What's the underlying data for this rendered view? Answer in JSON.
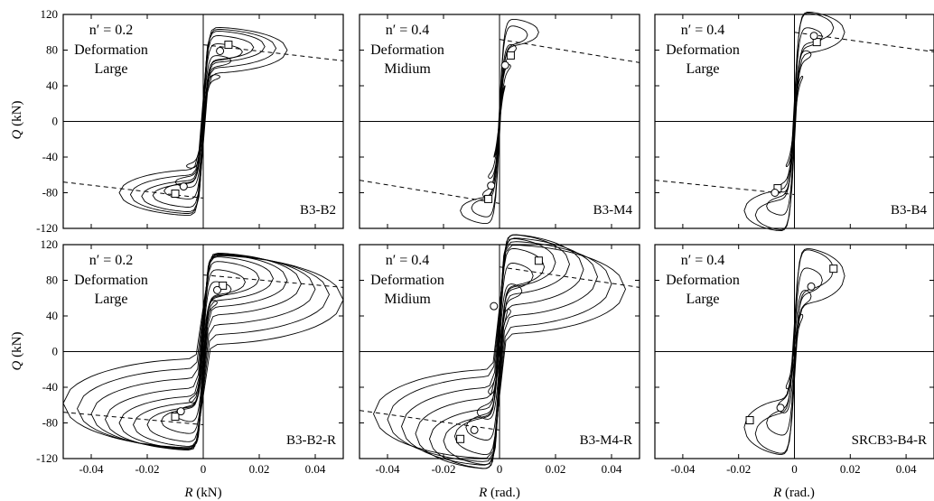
{
  "figure": {
    "y_axis_title": {
      "var": "Q",
      "unit": " (kN)"
    },
    "x_axis_titles": [
      {
        "var": "R",
        "unit": " (kN)"
      },
      {
        "var": "R",
        "unit": " (rad.)"
      },
      {
        "var": "R",
        "unit": " (rad.)"
      }
    ]
  },
  "chart_data": [
    {
      "type": "line",
      "id": "B3-B2",
      "specimen": "B3-B2",
      "annotation": {
        "n": "n′ = 0.2",
        "line2": "Deformation",
        "line3": "Large"
      },
      "xlim": [
        -0.05,
        0.05
      ],
      "ylim": [
        -120,
        120
      ],
      "xticks": [],
      "yticks": [
        -120,
        -80,
        -40,
        0,
        40,
        80,
        120
      ],
      "loops": {
        "amp": [
          0.006,
          0.01,
          0.014,
          0.018,
          0.022,
          0.026,
          0.03
        ],
        "peak": [
          50,
          68,
          78,
          83,
          84,
          82,
          80
        ],
        "width": [
          4,
          7,
          10,
          14,
          18,
          22,
          26
        ]
      },
      "dashed_lines": [
        [
          [
            0.0,
            86
          ],
          [
            0.05,
            68
          ]
        ],
        [
          [
            -0.05,
            -68
          ],
          [
            0.0,
            -86
          ]
        ]
      ],
      "squares": [
        [
          0.009,
          86
        ],
        [
          -0.01,
          -81
        ]
      ],
      "circles": [
        [
          0.006,
          79
        ],
        [
          -0.007,
          -73
        ]
      ]
    },
    {
      "type": "line",
      "id": "B3-M4",
      "specimen": "B3-M4",
      "annotation": {
        "n": "n′ = 0.4",
        "line2": "Deformation",
        "line3": "Midium"
      },
      "xlim": [
        -0.05,
        0.05
      ],
      "ylim": [
        -120,
        120
      ],
      "xticks": [],
      "yticks": [],
      "loops": {
        "amp": [
          0.002,
          0.004,
          0.006,
          0.01,
          0.014
        ],
        "peak": [
          40,
          62,
          82,
          97,
          100
        ],
        "width": [
          3,
          5,
          7,
          12,
          16
        ]
      },
      "dashed_lines": [
        [
          [
            0.0,
            92
          ],
          [
            0.05,
            66
          ]
        ],
        [
          [
            -0.05,
            -66
          ],
          [
            0.0,
            -92
          ]
        ]
      ],
      "squares": [
        [
          0.004,
          74
        ],
        [
          -0.004,
          -87
        ]
      ],
      "circles": [
        [
          0.002,
          63
        ],
        [
          -0.003,
          -72
        ]
      ]
    },
    {
      "type": "line",
      "id": "B3-B4",
      "specimen": "B3-B4",
      "annotation": {
        "n": "n′ = 0.4",
        "line2": "Deformation",
        "line3": "Large"
      },
      "xlim": [
        -0.05,
        0.05
      ],
      "ylim": [
        -120,
        120
      ],
      "xticks": [],
      "yticks": [],
      "loops": {
        "amp": [
          0.003,
          0.006,
          0.01,
          0.014,
          0.018
        ],
        "peak": [
          50,
          75,
          95,
          105,
          100
        ],
        "width": [
          4,
          7,
          12,
          18,
          24
        ]
      },
      "dashed_lines": [
        [
          [
            0.0,
            100
          ],
          [
            0.05,
            78
          ]
        ],
        [
          [
            -0.05,
            -66
          ],
          [
            0.0,
            -82
          ]
        ]
      ],
      "squares": [
        [
          0.008,
          89
        ],
        [
          -0.006,
          -75
        ]
      ],
      "circles": [
        [
          0.007,
          96
        ],
        [
          -0.007,
          -80
        ]
      ]
    },
    {
      "type": "line",
      "id": "B3-B2-R",
      "specimen": "B3-B2-R",
      "annotation": {
        "n": "n′ = 0.2",
        "line2": "Deformation",
        "line3": "Large"
      },
      "xlim": [
        -0.05,
        0.05
      ],
      "ylim": [
        -120,
        120
      ],
      "xticks": [
        -0.04,
        -0.02,
        0,
        0.02,
        0.04
      ],
      "yticks": [
        -120,
        -80,
        -40,
        0,
        40,
        80,
        120
      ],
      "loops": {
        "amp": [
          0.005,
          0.01,
          0.015,
          0.02,
          0.025,
          0.03,
          0.035,
          0.04,
          0.045,
          0.05
        ],
        "peak": [
          55,
          70,
          78,
          82,
          82,
          80,
          76,
          70,
          64,
          58
        ],
        "width": [
          5,
          10,
          15,
          20,
          25,
          30,
          35,
          40,
          45,
          50
        ]
      },
      "dashed_lines": [
        [
          [
            0.0,
            86
          ],
          [
            0.05,
            72
          ]
        ],
        [
          [
            -0.05,
            -68
          ],
          [
            0.0,
            -82
          ]
        ]
      ],
      "squares": [
        [
          0.007,
          74
        ],
        [
          -0.01,
          -73
        ]
      ],
      "circles": [
        [
          0.005,
          69
        ],
        [
          -0.008,
          -67
        ]
      ]
    },
    {
      "type": "line",
      "id": "B3-M4-R",
      "specimen": "B3-M4-R",
      "annotation": {
        "n": "n′ = 0.4",
        "line2": "Deformation",
        "line3": "Midium"
      },
      "xlim": [
        -0.05,
        0.05
      ],
      "ylim": [
        -120,
        120
      ],
      "xticks": [
        -0.04,
        -0.02,
        0,
        0.02,
        0.04
      ],
      "yticks": [],
      "loops": {
        "amp": [
          0.004,
          0.008,
          0.012,
          0.016,
          0.02,
          0.025,
          0.03,
          0.035,
          0.04,
          0.045
        ],
        "peak": [
          45,
          68,
          85,
          95,
          100,
          98,
          92,
          84,
          76,
          70
        ],
        "width": [
          6,
          10,
          16,
          22,
          28,
          34,
          40,
          44,
          48,
          50
        ]
      },
      "dashed_lines": [
        [
          [
            0.0,
            95
          ],
          [
            0.05,
            72
          ]
        ],
        [
          [
            -0.05,
            -66
          ],
          [
            0.0,
            -88
          ]
        ]
      ],
      "squares": [
        [
          0.014,
          102
        ],
        [
          -0.014,
          -98
        ]
      ],
      "circles": [
        [
          -0.002,
          51
        ],
        [
          -0.009,
          -88
        ]
      ]
    },
    {
      "type": "line",
      "id": "SRCB3-B4-R",
      "specimen": "SRCB3-B4-R",
      "annotation": {
        "n": "n′ = 0.4",
        "line2": "Deformation",
        "line3": "Large"
      },
      "xlim": [
        -0.05,
        0.05
      ],
      "ylim": [
        -120,
        120
      ],
      "xticks": [
        -0.04,
        -0.02,
        0,
        0.02,
        0.04
      ],
      "yticks": [],
      "loops": {
        "amp": [
          0.003,
          0.006,
          0.01,
          0.014,
          0.018
        ],
        "peak": [
          40,
          62,
          80,
          92,
          85
        ],
        "width": [
          6,
          10,
          16,
          24,
          32
        ]
      },
      "dashed_lines": [],
      "squares": [
        [
          0.014,
          93
        ],
        [
          -0.016,
          -77
        ]
      ],
      "circles": [
        [
          0.006,
          73
        ],
        [
          -0.005,
          -63
        ]
      ]
    }
  ]
}
